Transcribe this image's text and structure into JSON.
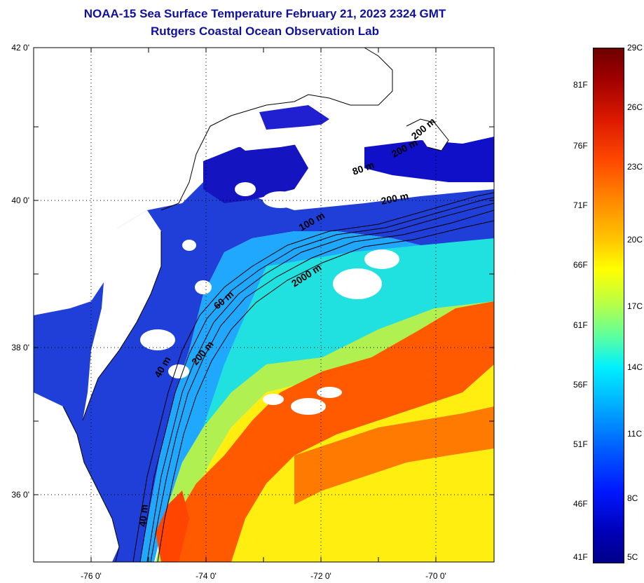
{
  "header": {
    "title_line1": "NOAA-15 Sea Surface Temperature February 21, 2023 2324 GMT",
    "title_line2": "Rutgers Coastal Ocean Observation Lab"
  },
  "axes": {
    "x_ticks": [
      "-76 0'",
      "-74 0'",
      "-72 0'",
      "-70 0'"
    ],
    "x_values": [
      -76,
      -74,
      -72,
      -70
    ],
    "y_ticks": [
      "42 0'",
      "40 0'",
      "38 0'",
      "36 0'"
    ],
    "y_values": [
      42,
      40,
      38,
      36
    ],
    "lon_range": [
      -77,
      -69
    ],
    "lat_range": [
      35,
      42
    ],
    "grid": "dotted"
  },
  "contour_labels": [
    "100 m",
    "2000 m",
    "60 m",
    "200 m",
    "40 m",
    "200 m",
    "80 m",
    "200 m",
    "200 m",
    "40 m"
  ],
  "colorbar": {
    "celsius": [
      "29C",
      "26C",
      "23C",
      "20C",
      "17C",
      "14C",
      "11C",
      "8C",
      "5C"
    ],
    "fahrenheit": [
      "81F",
      "76F",
      "71F",
      "66F",
      "61F",
      "56F",
      "51F",
      "46F",
      "41F"
    ],
    "range_c": [
      5,
      29
    ],
    "colors": [
      "#6e0000",
      "#dd1a00",
      "#ff8c00",
      "#ffff00",
      "#5cffa0",
      "#00f0ff",
      "#005cff",
      "#0018ff",
      "#00008a"
    ]
  }
}
